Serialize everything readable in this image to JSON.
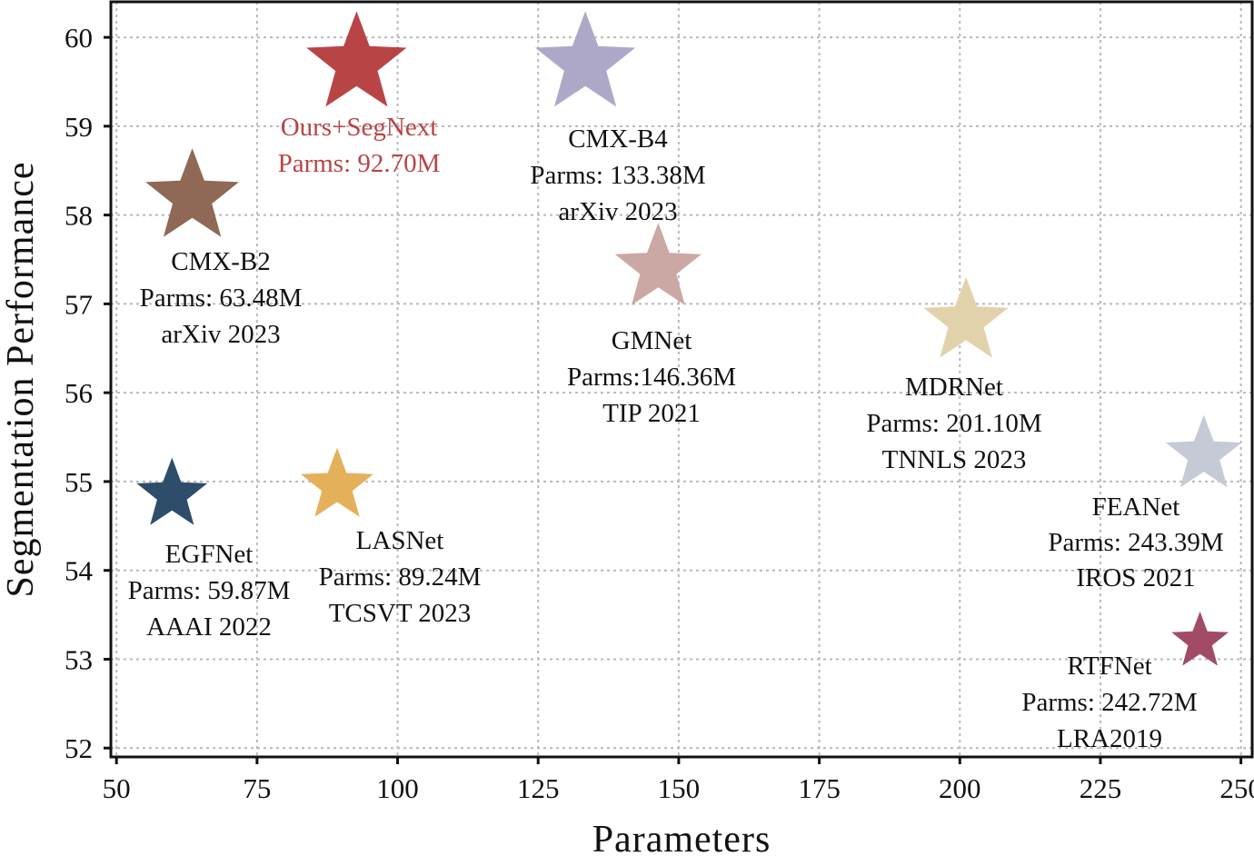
{
  "chart_data": {
    "type": "scatter",
    "marker": "star",
    "xlabel": "Parameters",
    "ylabel": "Segmentation Performance",
    "xlim": [
      49,
      252
    ],
    "ylim": [
      51.9,
      60.4
    ],
    "xticks": [
      50,
      75,
      100,
      125,
      150,
      175,
      200,
      225,
      250
    ],
    "yticks": [
      52,
      53,
      54,
      55,
      56,
      57,
      58,
      59,
      60
    ],
    "grid": true,
    "points": [
      {
        "name": "Ours+SegNext",
        "x": 92.7,
        "y": 59.7,
        "color": "#b94446",
        "label_color": "#b94446",
        "lines": [
          "Ours+SegNext",
          "Parms: 92.70M"
        ]
      },
      {
        "name": "CMX-B4",
        "x": 133.38,
        "y": 59.7,
        "color": "#aea8c8",
        "label_color": "#111111",
        "lines": [
          "CMX-B4",
          "Parms: 133.38M",
          "arXiv 2023"
        ]
      },
      {
        "name": "CMX-B2",
        "x": 63.48,
        "y": 58.2,
        "color": "#8f6856",
        "label_color": "#111111",
        "lines": [
          "CMX-B2",
          "Parms: 63.48M",
          "arXiv 2023"
        ]
      },
      {
        "name": "GMNet",
        "x": 146.36,
        "y": 57.4,
        "color": "#cba8a3",
        "label_color": "#111111",
        "lines": [
          "GMNet",
          "Parms:146.36M",
          "TIP 2021"
        ]
      },
      {
        "name": "MDRNet",
        "x": 201.1,
        "y": 56.8,
        "color": "#e2d2ac",
        "label_color": "#111111",
        "lines": [
          "MDRNet",
          "Parms: 201.10M",
          "TNNLS 2023"
        ]
      },
      {
        "name": "FEANet",
        "x": 243.39,
        "y": 55.3,
        "color": "#c6cad7",
        "label_color": "#111111",
        "lines": [
          "FEANet",
          "Parms: 243.39M",
          "IROS 2021"
        ]
      },
      {
        "name": "EGFNet",
        "x": 59.87,
        "y": 54.85,
        "color": "#2e4d6a",
        "label_color": "#111111",
        "lines": [
          "EGFNet",
          "Parms: 59.87M",
          "AAAI 2022"
        ]
      },
      {
        "name": "LASNet",
        "x": 89.24,
        "y": 54.95,
        "color": "#e5b05a",
        "label_color": "#111111",
        "lines": [
          "LASNet",
          "Parms: 89.24M",
          "TCSVT 2023"
        ]
      },
      {
        "name": "RTFNet",
        "x": 242.72,
        "y": 53.2,
        "color": "#a14b66",
        "label_color": "#111111",
        "lines": [
          "RTFNet",
          "Parms: 242.72M",
          "LRA2019"
        ]
      }
    ]
  }
}
